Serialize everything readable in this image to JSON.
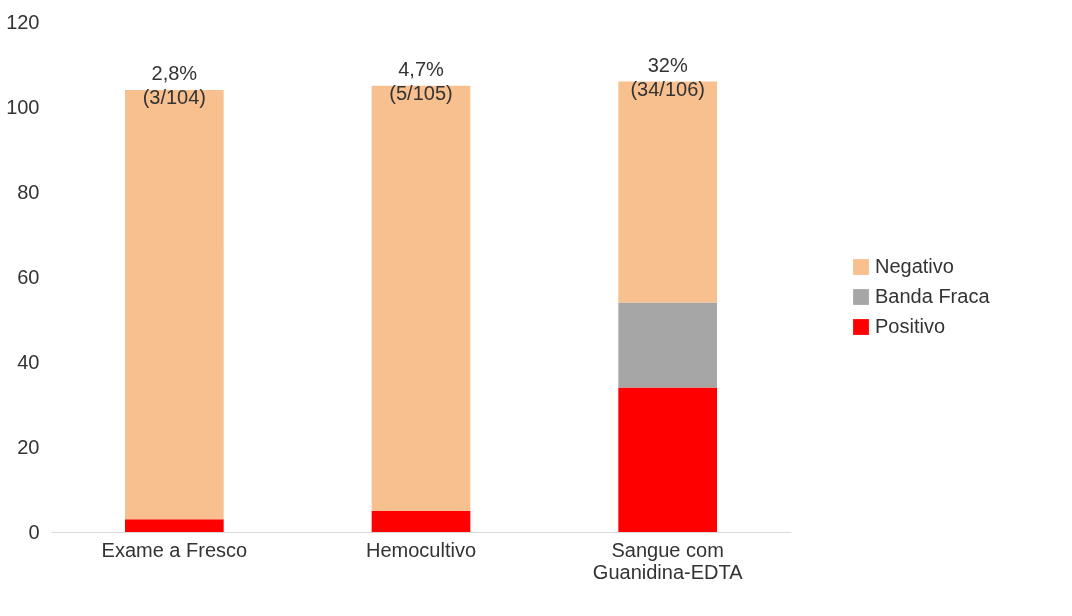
{
  "chart_data": {
    "type": "bar",
    "stacked": true,
    "categories": [
      "Exame a Fresco",
      "Hemocultivo",
      "Sangue com\nGuanidina-EDTA"
    ],
    "series": [
      {
        "name": "Positivo",
        "color": "#ff0000",
        "values": [
          3,
          5,
          34
        ]
      },
      {
        "name": "Banda Fraca",
        "color": "#a6a6a6",
        "values": [
          null,
          null,
          20
        ]
      },
      {
        "name": "Negativo",
        "color": "#f8bf8f",
        "values": [
          101,
          100,
          52
        ]
      }
    ],
    "totals": [
      "2,8%\n(3/104)",
      "4,7%\n(5/105)",
      "32%\n(34/106)"
    ],
    "ylim": [
      0,
      120
    ],
    "yticks": [
      0,
      20,
      40,
      60,
      80,
      100,
      120
    ],
    "grid": false,
    "legend": "right"
  }
}
